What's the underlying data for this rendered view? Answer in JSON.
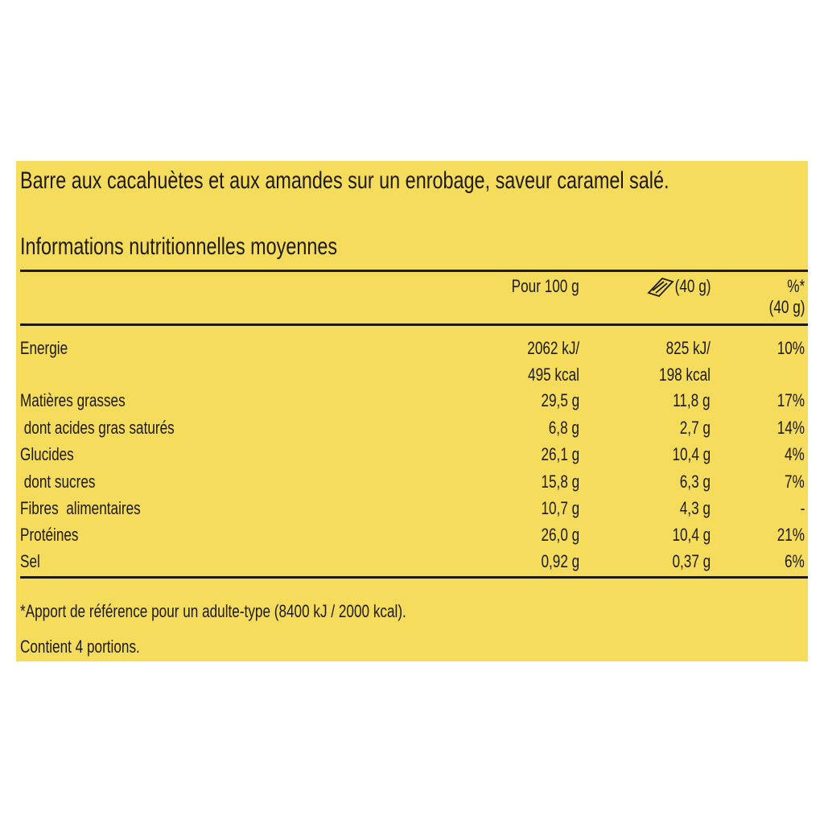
{
  "title": "Barre aux cacahuètes et aux amandes sur un enrobage, saveur caramel salé.",
  "subtitle": "Informations nutritionnelles moyennes",
  "table": {
    "header": {
      "per100": "Pour 100 g",
      "portion": "(40 g)",
      "ri": [
        "%*",
        "(40 g)"
      ]
    },
    "rows": [
      [
        "Energie",
        [
          "2062 kJ/",
          "495 kcal"
        ],
        [
          "825 kJ/",
          "198 kcal"
        ],
        "10%"
      ],
      [
        "Matières grasses",
        "29,5 g",
        "11,8 g",
        "17%"
      ],
      [
        " dont acides gras saturés",
        "6,8 g",
        "2,7 g",
        "14%"
      ],
      [
        "Glucides",
        "26,1 g",
        "10,4 g",
        "4%"
      ],
      [
        " dont sucres",
        "15,8 g",
        "6,3 g",
        "7%"
      ],
      [
        "Fibres  alimentaires",
        "10,7 g",
        "4,3 g",
        "-"
      ],
      [
        "Protéines",
        "26,0 g",
        "10,4 g",
        "21%"
      ],
      [
        "Sel",
        "0,92 g",
        "0,37 g",
        "6%"
      ]
    ]
  },
  "footnote": "*Apport de référence pour un adulte-type (8400 kJ / 2000 kcal).",
  "portions": "Contient 4 portions."
}
